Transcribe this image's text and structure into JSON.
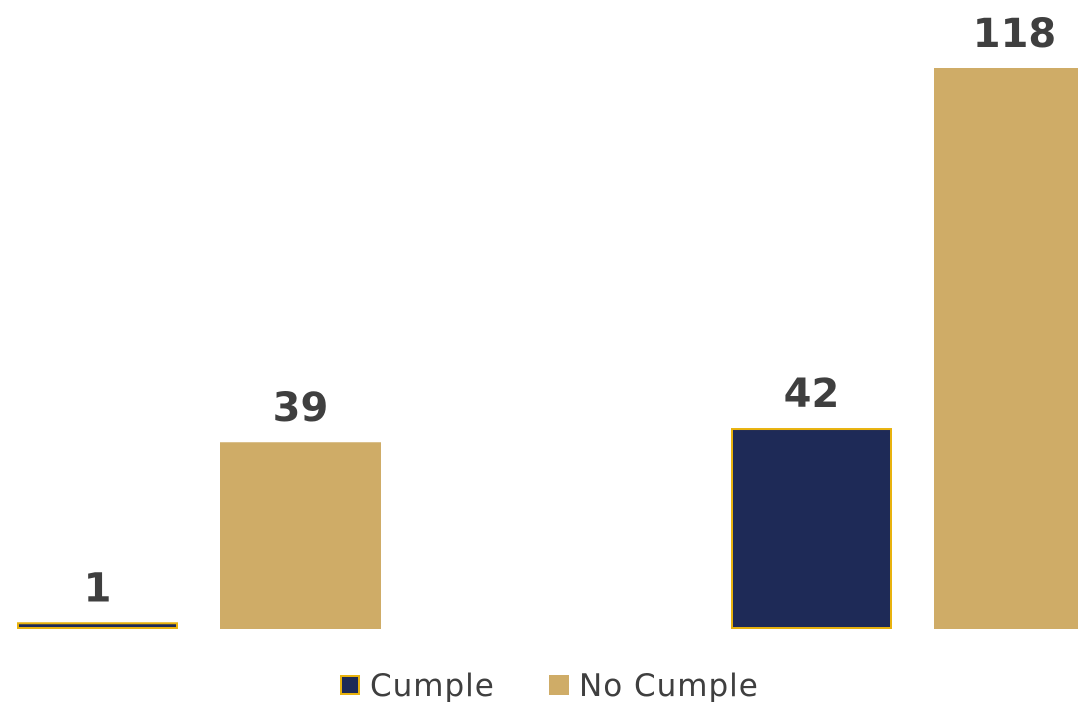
{
  "chart_data": {
    "type": "bar",
    "categories": [
      "",
      ""
    ],
    "series": [
      {
        "name": "Cumple",
        "values": [
          1,
          42
        ],
        "fill": "#1e2a57",
        "stroke": "#e8b20e"
      },
      {
        "name": "No Cumple",
        "values": [
          39,
          118
        ],
        "fill": "#cfac67",
        "stroke": "#cfac67"
      }
    ],
    "ylim": [
      0,
      118
    ],
    "grid": false,
    "legend": "bottom-center",
    "title": "",
    "xlabel": "",
    "ylabel": ""
  }
}
